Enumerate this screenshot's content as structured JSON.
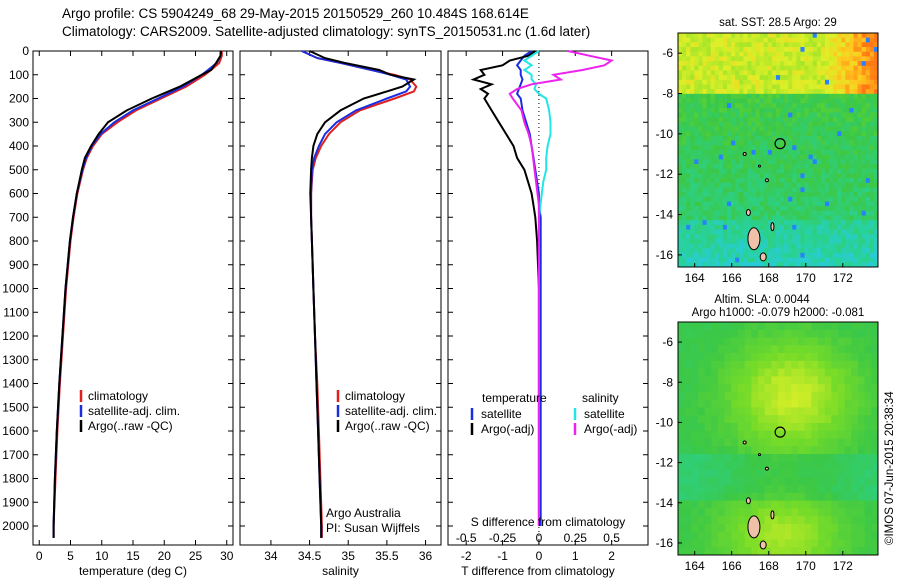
{
  "title_line1": "Argo profile: CS 5904249_68 29-May-2015 20150529_260 10.484S 168.614E",
  "title_line2": "Climatology: CARS2009. Satellite-adjusted climatology: synTS_20150531.nc (1.6d later)",
  "stamp": "©IMOS 07-Jun-2015 20:38:34",
  "colors": {
    "climatology": "#e02020",
    "satellite": "#1a2ee0",
    "argo": "#000000",
    "sat_salinity": "#22e6e6",
    "argo_adj_salinity": "#ee22ee"
  },
  "chart_data": [
    {
      "type": "line",
      "id": "temperature",
      "xlabel": "temperature (deg C)",
      "ylabel": "",
      "xlim": [
        -1,
        31
      ],
      "ylim": [
        2080,
        0
      ],
      "xticks": [
        0,
        5,
        10,
        15,
        20,
        25,
        30
      ],
      "yticks": [
        0,
        100,
        200,
        300,
        400,
        500,
        600,
        700,
        800,
        900,
        1000,
        1100,
        1200,
        1300,
        1400,
        1500,
        1600,
        1700,
        1800,
        1900,
        2000
      ],
      "legend": [
        "climatology",
        "satellite-adj. clim.",
        "Argo(..raw -QC)"
      ],
      "depth": [
        0,
        20,
        50,
        80,
        100,
        150,
        200,
        250,
        300,
        350,
        400,
        450,
        500,
        600,
        700,
        800,
        1000,
        1200,
        1400,
        1600,
        1800,
        2000,
        2050
      ],
      "series": [
        {
          "name": "climatology",
          "values": [
            29.2,
            29.2,
            28.8,
            27.5,
            26.5,
            23.5,
            19.5,
            15.5,
            12.5,
            10.0,
            8.6,
            7.6,
            7.0,
            6.1,
            5.5,
            5.0,
            4.3,
            3.8,
            3.3,
            2.9,
            2.6,
            2.3,
            2.3
          ]
        },
        {
          "name": "satellite-adj. clim.",
          "values": [
            29.0,
            29.0,
            28.4,
            27.0,
            26.0,
            23.0,
            19.0,
            15.0,
            12.0,
            9.8,
            8.4,
            7.5,
            6.9,
            6.0,
            5.4,
            4.9,
            4.2,
            3.7,
            3.2,
            2.8,
            2.5,
            2.3,
            2.3
          ]
        },
        {
          "name": "Argo(..raw -QC)",
          "values": [
            29.1,
            29.0,
            28.3,
            27.5,
            26.0,
            22.5,
            18.0,
            14.0,
            11.0,
            9.5,
            8.3,
            7.3,
            6.8,
            6.0,
            5.4,
            4.9,
            4.2,
            3.7,
            3.2,
            2.8,
            2.5,
            2.3,
            2.3
          ]
        }
      ]
    },
    {
      "type": "line",
      "id": "salinity",
      "xlabel": "salinity",
      "ylabel": "",
      "xlim": [
        33.6,
        36.2
      ],
      "ylim": [
        2080,
        0
      ],
      "xticks": [
        34,
        34.5,
        35,
        35.5,
        36
      ],
      "legend": [
        "climatology",
        "satellite-adj. clim.",
        "Argo(..raw -QC)"
      ],
      "annotations": [
        "Argo Australia",
        "PI: Susan Wijffels"
      ],
      "depth": [
        0,
        30,
        50,
        80,
        100,
        120,
        150,
        170,
        200,
        250,
        300,
        350,
        400,
        450,
        500,
        600,
        700,
        800,
        1000,
        1200,
        1400,
        1600,
        1800,
        2000,
        2050
      ],
      "series": [
        {
          "name": "climatology",
          "values": [
            34.4,
            34.6,
            34.9,
            35.3,
            35.6,
            35.8,
            35.88,
            35.85,
            35.6,
            35.15,
            34.9,
            34.75,
            34.65,
            34.58,
            34.54,
            34.52,
            34.52,
            34.53,
            34.55,
            34.57,
            34.6,
            34.62,
            34.64,
            34.66,
            34.66
          ]
        },
        {
          "name": "satellite-adj. clim.",
          "values": [
            34.4,
            34.6,
            34.9,
            35.3,
            35.55,
            35.75,
            35.8,
            35.75,
            35.5,
            35.1,
            34.85,
            34.7,
            34.62,
            34.56,
            34.53,
            34.52,
            34.52,
            34.53,
            34.55,
            34.57,
            34.59,
            34.61,
            34.63,
            34.65,
            34.65
          ]
        },
        {
          "name": "Argo(..raw -QC)",
          "values": [
            34.5,
            34.7,
            34.95,
            35.4,
            35.55,
            35.85,
            35.7,
            35.5,
            35.2,
            34.9,
            34.7,
            34.6,
            34.55,
            34.53,
            34.52,
            34.51,
            34.52,
            34.53,
            34.55,
            34.57,
            34.59,
            34.61,
            34.63,
            34.65,
            34.65
          ]
        }
      ]
    },
    {
      "type": "line",
      "id": "difference",
      "xlabel_top": "S difference from climatology",
      "xlabel": "T difference from climatology",
      "xlim": [
        -2.5,
        3.0
      ],
      "ylim": [
        2080,
        0
      ],
      "xticks": [
        -2,
        -1,
        0,
        1,
        2
      ],
      "xticks_s": [
        -0.5,
        -0.25,
        0,
        0.25,
        0.5
      ],
      "legend_titles": [
        "temperature",
        "salinity"
      ],
      "legend": [
        "satellite",
        "Argo(-adj)",
        "satellite",
        "Argo(-adj)"
      ],
      "depth": [
        0,
        20,
        40,
        60,
        80,
        100,
        120,
        140,
        160,
        180,
        200,
        250,
        300,
        350,
        400,
        450,
        500,
        550,
        600,
        650,
        700,
        800,
        1000,
        1500,
        2000
      ],
      "series": [
        {
          "name": "temperature satellite",
          "values": [
            -0.2,
            -0.4,
            -0.5,
            -0.6,
            -0.5,
            -0.5,
            -0.45,
            -0.5,
            -0.55,
            -0.6,
            -0.5,
            -0.45,
            -0.35,
            -0.25,
            -0.2,
            -0.15,
            -0.1,
            -0.05,
            0,
            0,
            0.05,
            0.05,
            0.05,
            0.05,
            0.05
          ]
        },
        {
          "name": "temperature Argo(-adj)",
          "values": [
            -0.1,
            -0.3,
            -0.8,
            -1.0,
            -1.6,
            -1.5,
            -1.8,
            -1.3,
            -1.6,
            -1.4,
            -1.5,
            -1.3,
            -1.1,
            -0.9,
            -0.7,
            -0.6,
            -0.4,
            -0.3,
            -0.2,
            -0.15,
            -0.1,
            -0.05,
            0,
            0,
            0
          ]
        },
        {
          "name": "salinity satellite",
          "values": [
            0,
            -0.05,
            -0.1,
            -0.05,
            -0.1,
            -0.05,
            -0.05,
            -0.02,
            -0.03,
            0,
            0.05,
            0.07,
            0.08,
            0.08,
            0.06,
            0.05,
            0.05,
            0.03,
            0.02,
            0.01,
            0,
            0,
            0,
            0,
            0
          ]
        },
        {
          "name": "salinity Argo(-adj)",
          "values": [
            0.2,
            0.35,
            0.5,
            0.45,
            0.3,
            0.1,
            0.15,
            -0.05,
            -0.15,
            -0.2,
            -0.18,
            -0.12,
            -0.1,
            -0.07,
            -0.05,
            -0.04,
            -0.03,
            -0.02,
            -0.01,
            0,
            0,
            0,
            0,
            0,
            0
          ]
        }
      ]
    },
    {
      "type": "heatmap",
      "id": "sst_map",
      "title": "sat. SST: 28.5 Argo: 29",
      "xticks": [
        164,
        166,
        168,
        170,
        172
      ],
      "yticks": [
        -6,
        -8,
        -10,
        -12,
        -14,
        -16
      ],
      "xlim": [
        163.1,
        173.9
      ],
      "ylim": [
        -16.6,
        -5.0
      ],
      "profile_position": [
        168.614,
        -10.484
      ]
    },
    {
      "type": "heatmap",
      "id": "sla_map",
      "title": "Altim. SLA: 0.0044",
      "subtitle": "Argo h1000: -0.079 h2000: -0.081",
      "xticks": [
        164,
        166,
        168,
        170,
        172
      ],
      "yticks": [
        -6,
        -8,
        -10,
        -12,
        -14,
        -16
      ],
      "xlim": [
        163.1,
        173.9
      ],
      "ylim": [
        -16.6,
        -5.0
      ],
      "profile_position": [
        168.614,
        -10.484
      ]
    }
  ]
}
